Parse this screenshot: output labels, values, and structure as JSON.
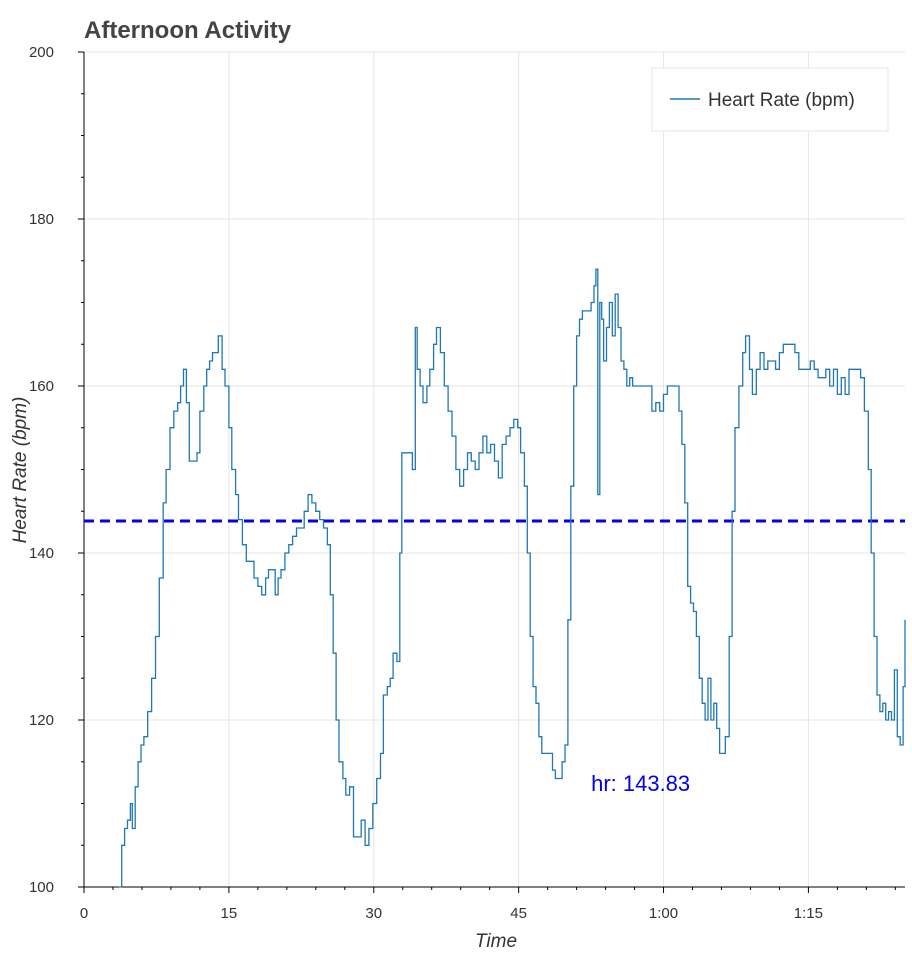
{
  "chart_data": {
    "type": "line",
    "title": "Afternoon Activity",
    "xlabel": "Time",
    "ylabel": "Heart Rate (bpm)",
    "xlim": [
      0,
      85
    ],
    "ylim": [
      100,
      200
    ],
    "x_ticks": [
      0,
      15,
      30,
      45,
      60,
      75
    ],
    "x_tick_labels": [
      "0",
      "15",
      "30",
      "45",
      "1:00",
      "1:15"
    ],
    "y_ticks": [
      100,
      120,
      140,
      160,
      180,
      200
    ],
    "y_tick_labels": [
      "100",
      "120",
      "140",
      "160",
      "180",
      "200"
    ],
    "grid": true,
    "legend_position": "top-right",
    "series": [
      {
        "name": "Heart Rate (bpm)",
        "color": "#1f77b4",
        "points": [
          [
            3.6,
            100
          ],
          [
            3.9,
            105
          ],
          [
            4.2,
            107
          ],
          [
            4.5,
            108
          ],
          [
            4.8,
            110
          ],
          [
            5.0,
            107
          ],
          [
            5.3,
            112
          ],
          [
            5.6,
            115
          ],
          [
            5.9,
            117
          ],
          [
            6.2,
            118
          ],
          [
            6.6,
            121
          ],
          [
            7.0,
            125
          ],
          [
            7.4,
            130
          ],
          [
            7.8,
            137
          ],
          [
            8.2,
            146
          ],
          [
            8.5,
            150
          ],
          [
            8.9,
            155
          ],
          [
            9.3,
            157
          ],
          [
            9.7,
            158
          ],
          [
            10.0,
            160
          ],
          [
            10.3,
            162
          ],
          [
            10.6,
            158
          ],
          [
            10.9,
            151
          ],
          [
            11.3,
            151
          ],
          [
            11.7,
            152
          ],
          [
            12.0,
            157
          ],
          [
            12.4,
            160
          ],
          [
            12.7,
            162
          ],
          [
            13.0,
            163
          ],
          [
            13.3,
            164
          ],
          [
            13.6,
            164
          ],
          [
            13.9,
            166
          ],
          [
            14.1,
            166
          ],
          [
            14.3,
            162
          ],
          [
            14.6,
            160
          ],
          [
            15.0,
            155
          ],
          [
            15.3,
            150
          ],
          [
            15.7,
            147
          ],
          [
            16.0,
            144
          ],
          [
            16.4,
            141
          ],
          [
            16.8,
            139
          ],
          [
            17.2,
            139
          ],
          [
            17.6,
            137
          ],
          [
            18.0,
            136
          ],
          [
            18.4,
            135
          ],
          [
            18.8,
            137
          ],
          [
            19.1,
            138
          ],
          [
            19.5,
            138
          ],
          [
            19.8,
            135
          ],
          [
            20.1,
            137
          ],
          [
            20.4,
            138
          ],
          [
            20.8,
            140
          ],
          [
            21.2,
            141
          ],
          [
            21.6,
            142
          ],
          [
            22.0,
            143
          ],
          [
            22.4,
            143
          ],
          [
            22.8,
            145
          ],
          [
            23.2,
            147
          ],
          [
            23.6,
            146
          ],
          [
            24.0,
            145
          ],
          [
            24.4,
            144
          ],
          [
            24.8,
            143
          ],
          [
            25.2,
            141
          ],
          [
            25.5,
            135
          ],
          [
            25.8,
            128
          ],
          [
            26.1,
            120
          ],
          [
            26.4,
            115
          ],
          [
            26.8,
            113
          ],
          [
            27.1,
            111
          ],
          [
            27.5,
            112
          ],
          [
            27.9,
            106
          ],
          [
            28.3,
            106
          ],
          [
            28.7,
            108
          ],
          [
            29.1,
            105
          ],
          [
            29.5,
            107
          ],
          [
            29.9,
            110
          ],
          [
            30.3,
            113
          ],
          [
            30.7,
            116
          ],
          [
            31.0,
            123
          ],
          [
            31.4,
            124
          ],
          [
            31.7,
            125
          ],
          [
            32.0,
            128
          ],
          [
            32.4,
            127
          ],
          [
            32.7,
            140
          ],
          [
            32.9,
            152
          ],
          [
            33.2,
            152
          ],
          [
            33.6,
            152
          ],
          [
            34.0,
            150
          ],
          [
            34.3,
            167
          ],
          [
            34.5,
            162
          ],
          [
            34.8,
            160
          ],
          [
            35.1,
            158
          ],
          [
            35.5,
            160
          ],
          [
            35.8,
            162
          ],
          [
            36.2,
            165
          ],
          [
            36.5,
            167
          ],
          [
            36.9,
            164
          ],
          [
            37.3,
            160
          ],
          [
            37.7,
            157
          ],
          [
            38.1,
            154
          ],
          [
            38.5,
            150
          ],
          [
            38.9,
            148
          ],
          [
            39.3,
            150
          ],
          [
            39.7,
            152
          ],
          [
            40.1,
            151
          ],
          [
            40.5,
            150
          ],
          [
            40.9,
            152
          ],
          [
            41.3,
            154
          ],
          [
            41.7,
            152
          ],
          [
            42.1,
            153
          ],
          [
            42.5,
            151
          ],
          [
            42.9,
            149
          ],
          [
            43.3,
            153
          ],
          [
            43.7,
            154
          ],
          [
            44.1,
            155
          ],
          [
            44.5,
            156
          ],
          [
            44.9,
            155
          ],
          [
            45.2,
            152
          ],
          [
            45.6,
            148
          ],
          [
            45.9,
            140
          ],
          [
            46.2,
            130
          ],
          [
            46.5,
            124
          ],
          [
            46.8,
            122
          ],
          [
            47.1,
            118
          ],
          [
            47.4,
            116
          ],
          [
            47.8,
            116
          ],
          [
            48.2,
            116
          ],
          [
            48.5,
            114
          ],
          [
            48.8,
            113
          ],
          [
            49.1,
            113
          ],
          [
            49.5,
            115
          ],
          [
            49.8,
            117
          ],
          [
            50.1,
            132
          ],
          [
            50.4,
            148
          ],
          [
            50.7,
            160
          ],
          [
            51.0,
            166
          ],
          [
            51.3,
            168
          ],
          [
            51.6,
            169
          ],
          [
            51.9,
            169
          ],
          [
            52.2,
            169
          ],
          [
            52.5,
            170
          ],
          [
            52.8,
            172
          ],
          [
            53.0,
            174
          ],
          [
            53.2,
            147
          ],
          [
            53.4,
            170
          ],
          [
            53.6,
            168
          ],
          [
            53.8,
            163
          ],
          [
            54.1,
            167
          ],
          [
            54.4,
            170
          ],
          [
            54.7,
            166
          ],
          [
            55.0,
            171
          ],
          [
            55.3,
            167
          ],
          [
            55.6,
            163
          ],
          [
            55.9,
            162
          ],
          [
            56.2,
            160
          ],
          [
            56.5,
            161
          ],
          [
            56.8,
            160
          ],
          [
            57.2,
            160
          ],
          [
            57.6,
            160
          ],
          [
            58.0,
            160
          ],
          [
            58.4,
            160
          ],
          [
            58.8,
            157
          ],
          [
            59.2,
            158
          ],
          [
            59.6,
            157
          ],
          [
            60.0,
            159
          ],
          [
            60.4,
            160
          ],
          [
            60.8,
            160
          ],
          [
            61.2,
            160
          ],
          [
            61.6,
            157
          ],
          [
            61.9,
            153
          ],
          [
            62.2,
            146
          ],
          [
            62.5,
            136
          ],
          [
            62.8,
            134
          ],
          [
            63.1,
            133
          ],
          [
            63.4,
            130
          ],
          [
            63.7,
            125
          ],
          [
            64.0,
            122
          ],
          [
            64.3,
            120
          ],
          [
            64.6,
            125
          ],
          [
            64.9,
            120
          ],
          [
            65.2,
            122
          ],
          [
            65.5,
            119
          ],
          [
            65.8,
            116
          ],
          [
            66.1,
            116
          ],
          [
            66.4,
            118
          ],
          [
            66.8,
            130
          ],
          [
            67.1,
            145
          ],
          [
            67.4,
            155
          ],
          [
            67.8,
            160
          ],
          [
            68.2,
            164
          ],
          [
            68.5,
            166
          ],
          [
            68.9,
            162
          ],
          [
            69.2,
            159
          ],
          [
            69.6,
            162
          ],
          [
            70.0,
            164
          ],
          [
            70.4,
            162
          ],
          [
            70.8,
            163
          ],
          [
            71.2,
            163
          ],
          [
            71.6,
            162
          ],
          [
            72.0,
            164
          ],
          [
            72.4,
            165
          ],
          [
            72.8,
            165
          ],
          [
            73.2,
            165
          ],
          [
            73.6,
            164
          ],
          [
            74.0,
            162
          ],
          [
            74.4,
            162
          ],
          [
            74.8,
            162
          ],
          [
            75.2,
            163
          ],
          [
            75.6,
            162
          ],
          [
            76.0,
            161
          ],
          [
            76.4,
            161
          ],
          [
            76.8,
            162
          ],
          [
            77.2,
            160
          ],
          [
            77.6,
            162
          ],
          [
            78.0,
            159
          ],
          [
            78.4,
            161
          ],
          [
            78.8,
            159
          ],
          [
            79.2,
            162
          ],
          [
            79.6,
            162
          ],
          [
            80.0,
            162
          ],
          [
            80.4,
            161
          ],
          [
            80.8,
            157
          ],
          [
            81.2,
            150
          ],
          [
            81.5,
            140
          ],
          [
            81.8,
            130
          ],
          [
            82.1,
            123
          ],
          [
            82.4,
            121
          ],
          [
            82.7,
            122
          ],
          [
            83.0,
            120
          ],
          [
            83.3,
            121
          ],
          [
            83.6,
            120
          ],
          [
            83.9,
            126
          ],
          [
            84.2,
            118
          ],
          [
            84.5,
            117
          ],
          [
            84.8,
            124
          ],
          [
            85.0,
            132
          ]
        ]
      }
    ],
    "reference_line": {
      "y": 143.83,
      "color": "#0000ee",
      "style": "dashed"
    },
    "annotation": {
      "text": "hr: 143.83",
      "x": 52.5,
      "y": 111.5,
      "color": "#0000ee"
    }
  }
}
